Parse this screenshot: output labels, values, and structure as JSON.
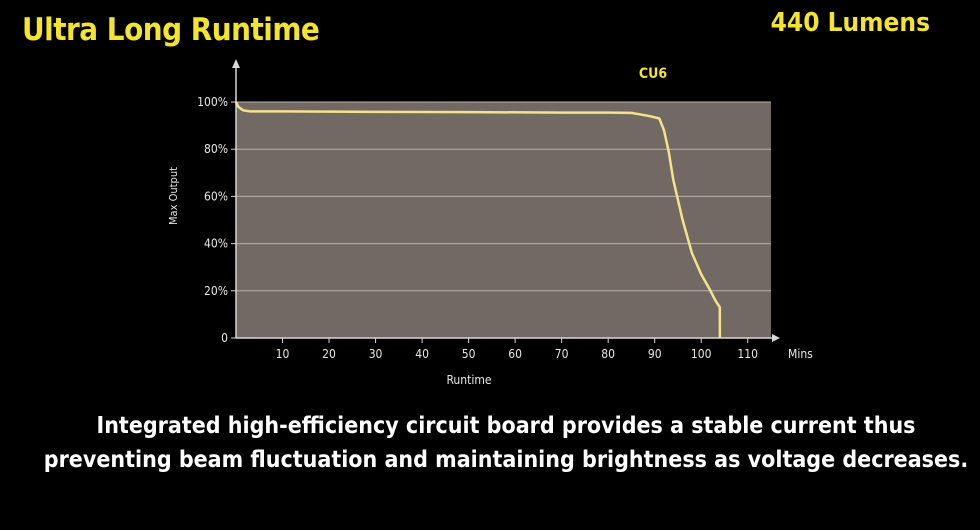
{
  "header": {
    "title": "Ultra Long Runtime",
    "lumens": "440 Lumens"
  },
  "caption": {
    "line1": "Integrated high-efficiency circuit board provides a stable current thus",
    "line2": "preventing beam fluctuation and maintaining brightness as voltage decreases."
  },
  "chart_data": {
    "type": "line",
    "xlabel": "Runtime",
    "ylabel": "Max Output",
    "x_unit": "Mins",
    "xlim": [
      0,
      115
    ],
    "ylim": [
      0,
      100
    ],
    "x_ticks": [
      10,
      20,
      30,
      40,
      50,
      60,
      70,
      80,
      90,
      100,
      110
    ],
    "y_ticks": [
      {
        "value": 0,
        "label": "0"
      },
      {
        "value": 20,
        "label": "20%"
      },
      {
        "value": 40,
        "label": "40%"
      },
      {
        "value": 60,
        "label": "60%"
      },
      {
        "value": 80,
        "label": "80%"
      },
      {
        "value": 100,
        "label": "100%"
      }
    ],
    "grid": true,
    "series": [
      {
        "name": "CU6",
        "color": "#f3e38a",
        "x": [
          0,
          0.5,
          1.5,
          3,
          10,
          30,
          50,
          70,
          80,
          85,
          89,
          91,
          92,
          93,
          94,
          96,
          98,
          100,
          102,
          103,
          104,
          104.01
        ],
        "y": [
          100,
          98,
          96.5,
          96,
          96,
          95.8,
          95.7,
          95.5,
          95.5,
          95.4,
          94,
          93,
          88,
          79,
          67,
          50,
          36,
          27,
          20,
          16,
          13,
          0
        ]
      }
    ]
  },
  "colors": {
    "accent": "#f5e52a",
    "plot_bg": "#736964",
    "grid": "#b8b0ab"
  }
}
